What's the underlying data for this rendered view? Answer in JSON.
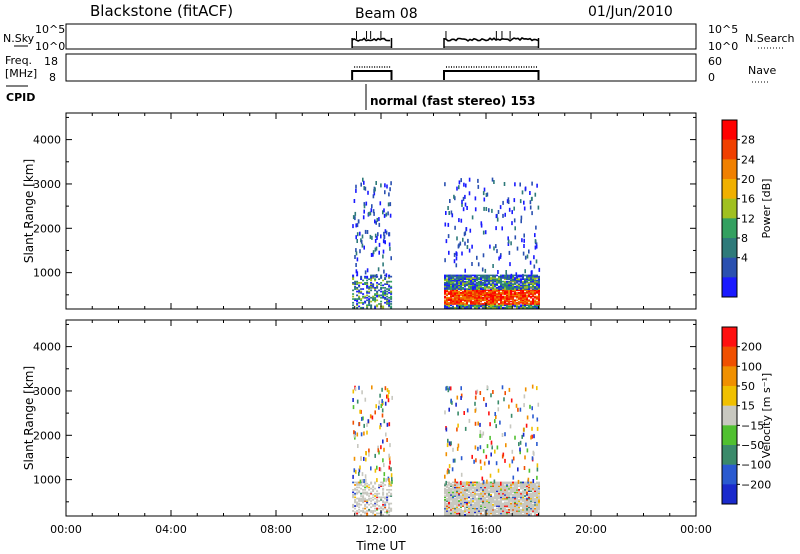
{
  "header": {
    "station": "Blackstone (fitACF)",
    "beam": "Beam 08",
    "date": "01/Jun/2010"
  },
  "panels": {
    "nsky_label": "N.Sky",
    "nsky_ticks": [
      "10^5",
      "10^0"
    ],
    "nsearch_label": "N.Search",
    "freq_label": "Freq.",
    "freq_unit": "[MHz]",
    "freq_ticks": [
      "18",
      "8"
    ],
    "nave_label": "Nave",
    "nave_ticks": [
      "60",
      "0"
    ],
    "cpid_label": "CPID",
    "cpid_text": "normal (fast stereo) 153"
  },
  "chart_data": [
    {
      "type": "heatmap",
      "title": "",
      "xlabel": "Time UT",
      "ylabel": "Slant Range [km]",
      "x_ticks": [
        "00:00",
        "04:00",
        "08:00",
        "12:00",
        "16:00",
        "20:00",
        "00:00"
      ],
      "xlim_hours": [
        0,
        24
      ],
      "y_ticks": [
        1000,
        2000,
        3000,
        4000
      ],
      "ylim": [
        180,
        4600
      ],
      "colorbar": {
        "label": "Power [dB]",
        "ticks": [
          "4",
          "8",
          "12",
          "16",
          "20",
          "24",
          "28"
        ],
        "colors": [
          "#1a1aff",
          "#2a50b0",
          "#2e7a7a",
          "#33a060",
          "#a0c020",
          "#f0b000",
          "#f08000",
          "#f04000",
          "#ff0000"
        ]
      },
      "data_windows_hours": [
        [
          10.9,
          12.4
        ],
        [
          14.4,
          18.0
        ]
      ],
      "strong_echo_band_km": [
        300,
        900
      ]
    },
    {
      "type": "heatmap",
      "title": "",
      "xlabel": "Time UT",
      "ylabel": "Slant Range [km]",
      "x_ticks": [
        "00:00",
        "04:00",
        "08:00",
        "12:00",
        "16:00",
        "20:00",
        "00:00"
      ],
      "xlim_hours": [
        0,
        24
      ],
      "y_ticks": [
        1000,
        2000,
        3000,
        4000
      ],
      "ylim": [
        180,
        4600
      ],
      "colorbar": {
        "label": "Velocity [m s⁻¹]",
        "ticks": [
          "200",
          "100",
          "50",
          "15",
          "−15",
          "−50",
          "−100",
          "−200"
        ],
        "colors": [
          "#1a2acc",
          "#2a5ad0",
          "#3a8a6a",
          "#50c030",
          "#c8c8c0",
          "#f0c000",
          "#f09000",
          "#f05000",
          "#ff1010"
        ]
      },
      "data_windows_hours": [
        [
          10.9,
          12.4
        ],
        [
          14.4,
          18.0
        ]
      ],
      "ground_scatter_band_km": [
        300,
        900
      ]
    }
  ]
}
